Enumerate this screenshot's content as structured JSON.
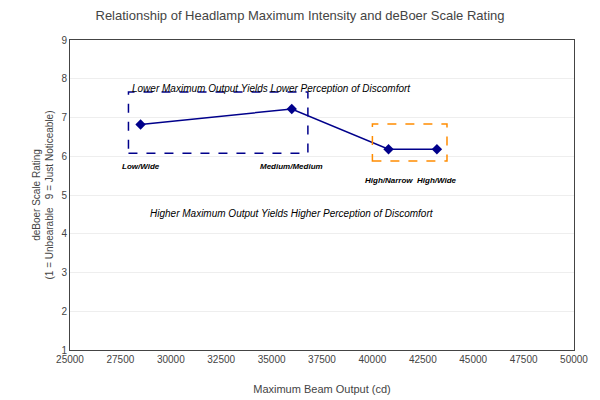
{
  "chart_data": {
    "type": "line",
    "title": "Relationship of Headlamp Maximum Intensity and deBoer Scale Rating",
    "x_label": "Maximum Beam Output (cd)",
    "y_label": "deBoer Scale Rating\n(1 = Unbearable   9 = Just Noticeable)",
    "x": [
      28500,
      36000,
      40800,
      43200
    ],
    "values": [
      6.82,
      7.22,
      6.18,
      6.18
    ],
    "color": "#00008B",
    "marker": "diamond",
    "xlim": [
      25000,
      50000
    ],
    "ylim": [
      1,
      9
    ],
    "xticks": [
      25000,
      27500,
      30000,
      32500,
      35000,
      37500,
      40000,
      42500,
      45000,
      47500,
      50000
    ],
    "yticks": [
      1,
      2,
      3,
      4,
      5,
      6,
      7,
      8,
      9
    ],
    "grid": "y",
    "boxes": [
      {
        "x0": 27900,
        "y0": 6.08,
        "width": 8900,
        "height": 1.58,
        "color": "#00008B",
        "line_style": "dashed"
      },
      {
        "x0": 40000,
        "y0": 5.88,
        "width": 3700,
        "height": 0.95,
        "color": "#FF8C00",
        "line_style": "dashed"
      }
    ],
    "point_labels": [
      {
        "text": "Low/Wide",
        "x": 28500,
        "y": 5.9
      },
      {
        "text": "Medium/Medium",
        "x": 36000,
        "y": 5.9
      },
      {
        "text": "High/Narrow",
        "x": 40800,
        "y": 5.55
      },
      {
        "text": "High/Wide",
        "x": 43200,
        "y": 5.55
      }
    ],
    "annotations": [
      {
        "text": "Lower Maximum Output Yields Lower Perception of Discomfort",
        "x": 28000,
        "y": 7.95
      },
      {
        "text": "Higher Maximum Output Yields Higher Perception of Discomfort",
        "x": 36000,
        "y": 4.72
      }
    ]
  }
}
